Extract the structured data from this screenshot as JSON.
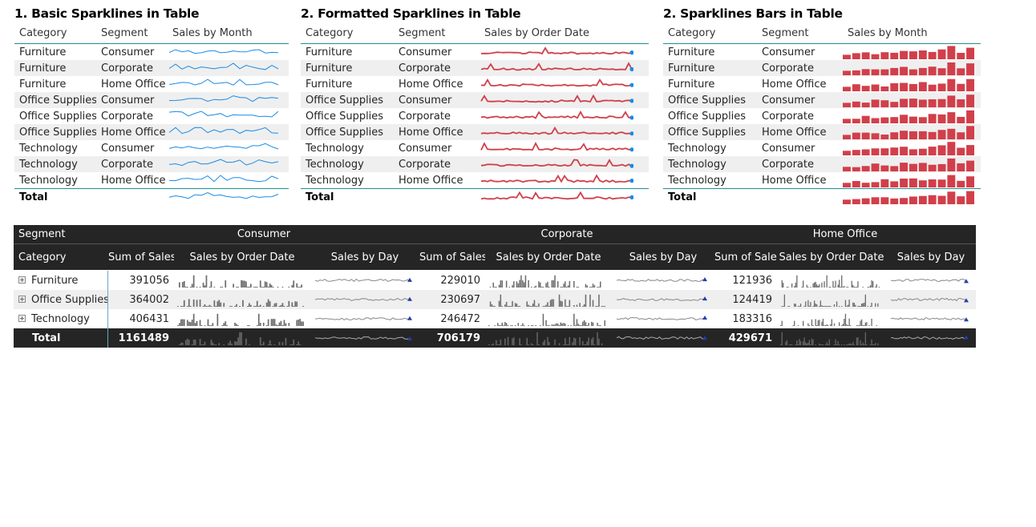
{
  "panels": [
    {
      "title": "1. Basic Sparklines in Table",
      "headers": [
        "Category",
        "Segment",
        "Sales by Month"
      ],
      "rows": [
        {
          "category": "Furniture",
          "segment": "Consumer"
        },
        {
          "category": "Furniture",
          "segment": "Corporate"
        },
        {
          "category": "Furniture",
          "segment": "Home Office"
        },
        {
          "category": "Office Supplies",
          "segment": "Consumer"
        },
        {
          "category": "Office Supplies",
          "segment": "Corporate"
        },
        {
          "category": "Office Supplies",
          "segment": "Home Office"
        },
        {
          "category": "Technology",
          "segment": "Consumer"
        },
        {
          "category": "Technology",
          "segment": "Corporate"
        },
        {
          "category": "Technology",
          "segment": "Home Office"
        }
      ],
      "total_label": "Total",
      "spark_style": "line",
      "spark_color": "#1a8be6"
    },
    {
      "title": "2. Formatted Sparklines in Table",
      "headers": [
        "Category",
        "Segment",
        "Sales by Order Date"
      ],
      "rows": [
        {
          "category": "Furniture",
          "segment": "Consumer"
        },
        {
          "category": "Furniture",
          "segment": "Corporate"
        },
        {
          "category": "Furniture",
          "segment": "Home Office"
        },
        {
          "category": "Office Supplies",
          "segment": "Consumer"
        },
        {
          "category": "Office Supplies",
          "segment": "Corporate"
        },
        {
          "category": "Office Supplies",
          "segment": "Home Office"
        },
        {
          "category": "Technology",
          "segment": "Consumer"
        },
        {
          "category": "Technology",
          "segment": "Corporate"
        },
        {
          "category": "Technology",
          "segment": "Home Office"
        }
      ],
      "total_label": "Total",
      "spark_style": "line-marker",
      "spark_color": "#d13f4a",
      "marker_color": "#1a8be6"
    },
    {
      "title": "2. Sparklines Bars in Table",
      "headers": [
        "Category",
        "Segment",
        "Sales by Month"
      ],
      "rows": [
        {
          "category": "Furniture",
          "segment": "Consumer"
        },
        {
          "category": "Furniture",
          "segment": "Corporate"
        },
        {
          "category": "Furniture",
          "segment": "Home Office"
        },
        {
          "category": "Office Supplies",
          "segment": "Consumer"
        },
        {
          "category": "Office Supplies",
          "segment": "Corporate"
        },
        {
          "category": "Office Supplies",
          "segment": "Home Office"
        },
        {
          "category": "Technology",
          "segment": "Consumer"
        },
        {
          "category": "Technology",
          "segment": "Corporate"
        },
        {
          "category": "Technology",
          "segment": "Home Office"
        }
      ],
      "total_label": "Total",
      "spark_style": "bars",
      "spark_color": "#d13f4a"
    }
  ],
  "matrix": {
    "header_row_label": "Segment",
    "category_label": "Category",
    "segments": [
      "Consumer",
      "Corporate",
      "Home Office"
    ],
    "measure_headers": [
      "Sum of Sales",
      "Sales by Order Date",
      "Sales by Day"
    ],
    "rows": [
      {
        "category": "Furniture",
        "sales": [
          "391056",
          "229010",
          "121936"
        ]
      },
      {
        "category": "Office Supplies",
        "sales": [
          "364002",
          "230697",
          "124419"
        ]
      },
      {
        "category": "Technology",
        "sales": [
          "406431",
          "246472",
          "183316"
        ]
      }
    ],
    "total": {
      "label": "Total",
      "sales": [
        "1161489",
        "706179",
        "429671"
      ]
    },
    "bar_color": "#6b6b6b",
    "line_color": "#888888",
    "marker_color": "#1f3fa8"
  }
}
